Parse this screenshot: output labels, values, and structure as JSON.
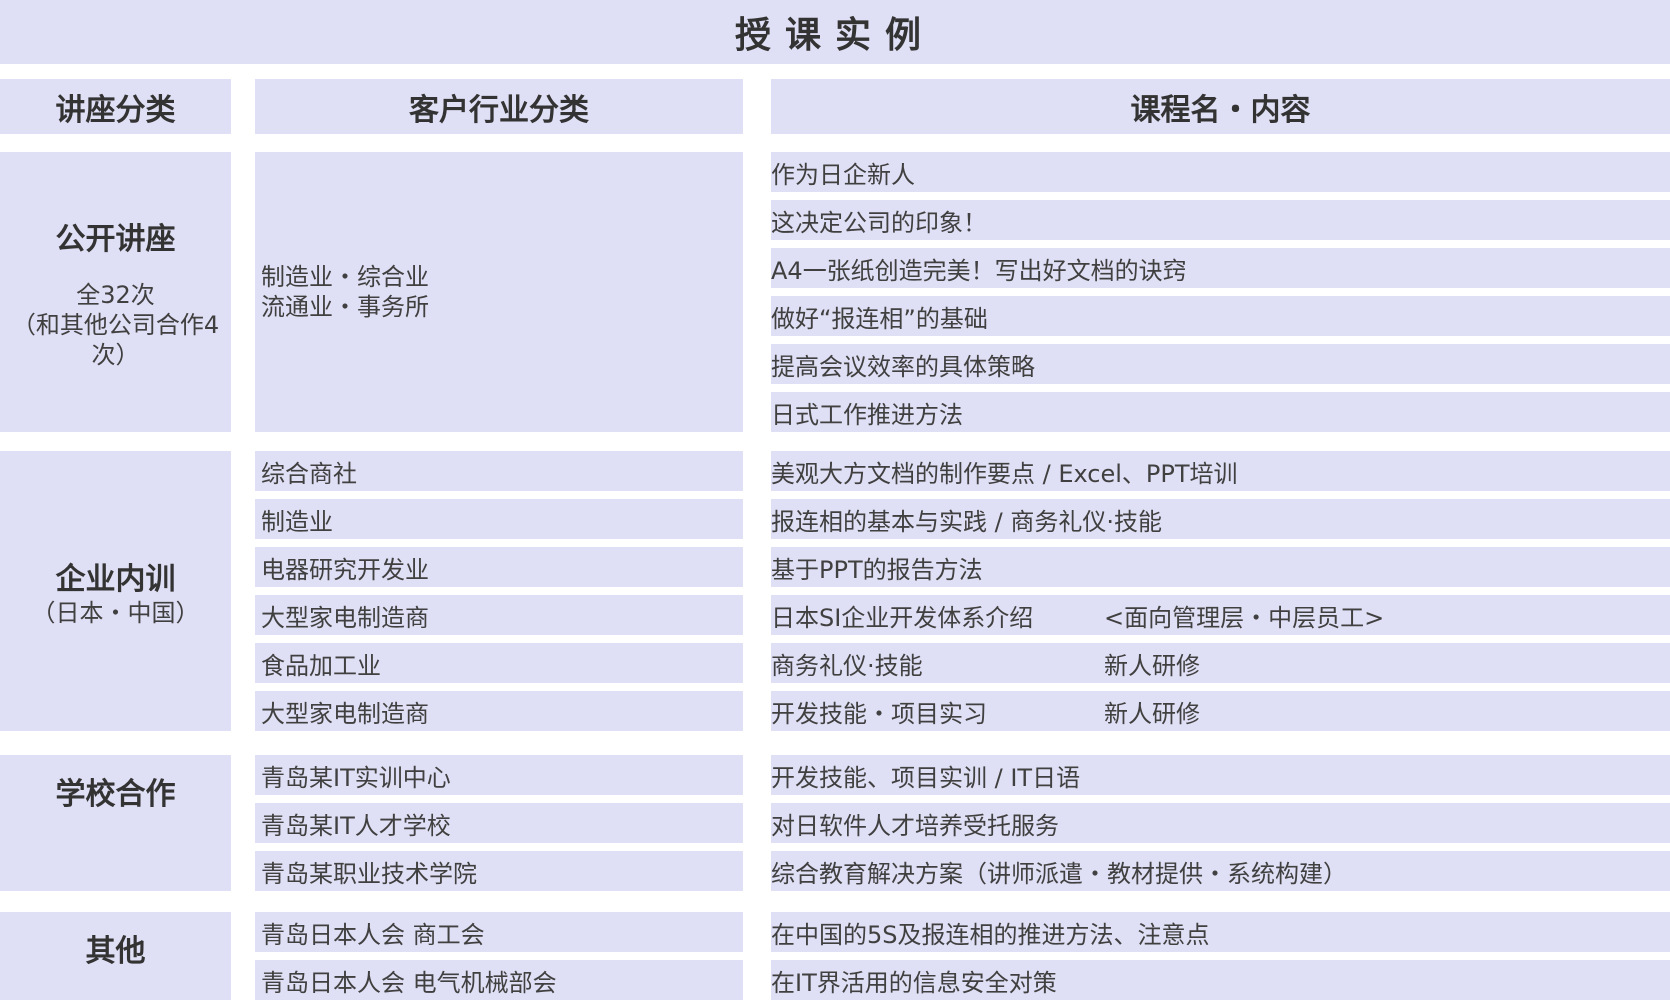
{
  "title": "授课实例",
  "headers": {
    "category": "讲座分类",
    "industry": "客户行业分类",
    "course": "课程名・内容"
  },
  "colors": {
    "cell_bg": "#dfdff5",
    "text": "#404040"
  },
  "sections": [
    {
      "label": "公开讲座",
      "sub": [
        "全32次",
        "（和其他公司合作4",
        "次）"
      ],
      "industry": [
        "制造业・综合业",
        "流通业・事务所"
      ],
      "courses": [
        {
          "name": "作为日企新人"
        },
        {
          "name": "这决定公司的印象！"
        },
        {
          "name": "A4一张纸创造完美！写出好文档的诀窍"
        },
        {
          "name": "做好“报连相”的基础"
        },
        {
          "name": "提高会议效率的具体策略"
        },
        {
          "name": "日式工作推进方法"
        }
      ]
    },
    {
      "label": "企业内训",
      "sub": [
        "（日本・中国）"
      ],
      "rows": [
        {
          "industry": "综合商社",
          "name": "美观大方文档的制作要点 / Excel、PPT培训"
        },
        {
          "industry": "制造业",
          "name": "报连相的基本与实践 / 商务礼仪·技能"
        },
        {
          "industry": "电器研究开发业",
          "name": "基于PPT的报告方法"
        },
        {
          "industry": "大型家电制造商",
          "name": "日本SI企业开发体系介绍",
          "suffix": "<面向管理层・中层员工>"
        },
        {
          "industry": "食品加工业",
          "name": "商务礼仪·技能",
          "suffix": "新人研修"
        },
        {
          "industry": "大型家电制造商",
          "name": "开发技能・项目实习",
          "suffix": "新人研修"
        }
      ]
    },
    {
      "label": "学校合作",
      "rows": [
        {
          "industry": "青岛某IT实训中心",
          "name": "开发技能、项目实训 / IT日语"
        },
        {
          "industry": "青岛某IT人才学校",
          "name": "对日软件人才培养受托服务"
        },
        {
          "industry": "青岛某职业技术学院",
          "name": "综合教育解决方案（讲师派遣・教材提供・系统构建）"
        }
      ]
    },
    {
      "label": "其他",
      "rows": [
        {
          "industry": "青岛日本人会 商工会",
          "name": "在中国的5S及报连相的推进方法、注意点"
        },
        {
          "industry": "青岛日本人会 电气机械部会",
          "name": "在IT界活用的信息安全对策"
        }
      ]
    }
  ]
}
